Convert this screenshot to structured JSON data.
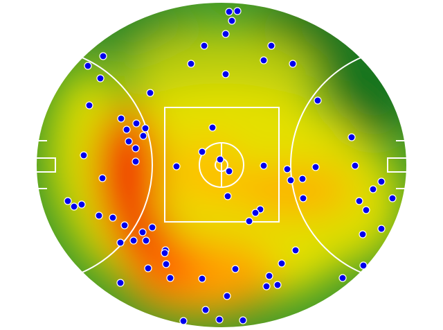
{
  "chart_data": {
    "type": "scatter",
    "xlim": [
      0,
      536
    ],
    "ylim": [
      0,
      470
    ],
    "series": [
      {
        "color": "#0000ee",
        "x": [
          279,
          291,
          283,
          274,
          243,
          340,
          97,
          75,
          224,
          329,
          371,
          274,
          93,
          165,
          77,
          407,
          123,
          145,
          158,
          131,
          155,
          255,
          134,
          144,
          69,
          240,
          266,
          456,
          144,
          203,
          279,
          329,
          363,
          404,
          461,
          96,
          368,
          385,
          499,
          487,
          277,
          386,
          46,
          55,
          66,
          467,
          515,
          477,
          324,
          317,
          91,
          111,
          308,
          128,
          168,
          154,
          499,
          472,
          122,
          141,
          159,
          375,
          187,
          186,
          355,
          188,
          162,
          288,
          473,
          337,
          194,
          240,
          443,
          122,
          333,
          349,
          276,
          245,
          265,
          213,
          299
        ],
        "y": [
          456,
          457,
          443,
          424,
          407,
          407,
          392,
          378,
          381,
          386,
          381,
          366,
          360,
          339,
          321,
          328,
          302,
          295,
          288,
          286,
          277,
          289,
          269,
          259,
          249,
          254,
          243,
          275,
          240,
          233,
          226,
          234,
          229,
          232,
          234,
          216,
          213,
          215,
          211,
          200,
          190,
          187,
          183,
          175,
          178,
          183,
          187,
          170,
          171,
          166,
          162,
          159,
          154,
          148,
          145,
          138,
          143,
          135,
          123,
          126,
          126,
          112,
          112,
          108,
          93,
          92,
          86,
          85,
          90,
          75,
          72,
          71,
          72,
          65,
          60,
          62,
          46,
          26,
          12,
          10,
          11
        ]
      }
    ]
  }
}
